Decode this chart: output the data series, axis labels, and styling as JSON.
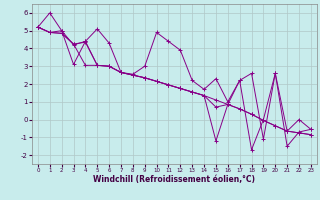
{
  "title": "",
  "xlabel": "Windchill (Refroidissement éolien,°C)",
  "ylabel": "",
  "xlim": [
    -0.5,
    23.5
  ],
  "ylim": [
    -2.5,
    6.5
  ],
  "yticks": [
    -2,
    -1,
    0,
    1,
    2,
    3,
    4,
    5,
    6
  ],
  "xticks": [
    0,
    1,
    2,
    3,
    4,
    5,
    6,
    7,
    8,
    9,
    10,
    11,
    12,
    13,
    14,
    15,
    16,
    17,
    18,
    19,
    20,
    21,
    22,
    23
  ],
  "bg_color": "#c8ecec",
  "line_color": "#880088",
  "grid_color": "#b0c8c8",
  "lines": [
    {
      "x": [
        0,
        1,
        2,
        3,
        4,
        5,
        6,
        7,
        8,
        9,
        10,
        11,
        12,
        13,
        14,
        15,
        16,
        17,
        18,
        19,
        20,
        21,
        22,
        23
      ],
      "y": [
        5.2,
        6.0,
        5.0,
        4.2,
        4.4,
        5.1,
        4.3,
        2.65,
        2.55,
        3.0,
        4.9,
        4.4,
        3.9,
        2.2,
        1.7,
        2.3,
        1.0,
        2.2,
        2.6,
        -1.1,
        2.6,
        -1.5,
        -0.7,
        -0.55
      ]
    },
    {
      "x": [
        0,
        1,
        2,
        3,
        4,
        5,
        6,
        7,
        8,
        9,
        10,
        11,
        12,
        13,
        14,
        15,
        16,
        17,
        18,
        19,
        20,
        21,
        22,
        23
      ],
      "y": [
        5.2,
        4.9,
        4.85,
        4.25,
        4.35,
        3.05,
        3.0,
        2.65,
        2.5,
        2.35,
        2.15,
        1.95,
        1.75,
        1.55,
        1.35,
        1.1,
        0.85,
        0.6,
        0.3,
        -0.05,
        -0.35,
        -0.65,
        -0.75,
        -0.85
      ]
    },
    {
      "x": [
        0,
        1,
        2,
        3,
        4,
        5,
        6,
        7,
        8,
        9,
        10,
        11,
        12,
        13,
        14,
        15,
        16,
        17,
        18,
        19,
        20,
        21,
        22,
        23
      ],
      "y": [
        5.2,
        4.9,
        5.0,
        3.1,
        4.4,
        3.05,
        3.0,
        2.65,
        2.5,
        2.35,
        2.15,
        1.95,
        1.75,
        1.55,
        1.35,
        -1.2,
        0.85,
        2.2,
        -1.7,
        0.0,
        2.6,
        -0.65,
        0.0,
        -0.55
      ]
    },
    {
      "x": [
        0,
        1,
        2,
        3,
        4,
        5,
        6,
        7,
        8,
        9,
        10,
        11,
        12,
        13,
        14,
        15,
        16,
        17,
        18,
        19,
        20,
        21,
        22,
        23
      ],
      "y": [
        5.2,
        4.9,
        4.85,
        4.25,
        3.05,
        3.05,
        3.0,
        2.65,
        2.5,
        2.35,
        2.15,
        1.95,
        1.75,
        1.55,
        1.35,
        0.7,
        0.85,
        0.6,
        0.3,
        -0.05,
        -0.35,
        -0.65,
        -0.75,
        -0.85
      ]
    }
  ]
}
